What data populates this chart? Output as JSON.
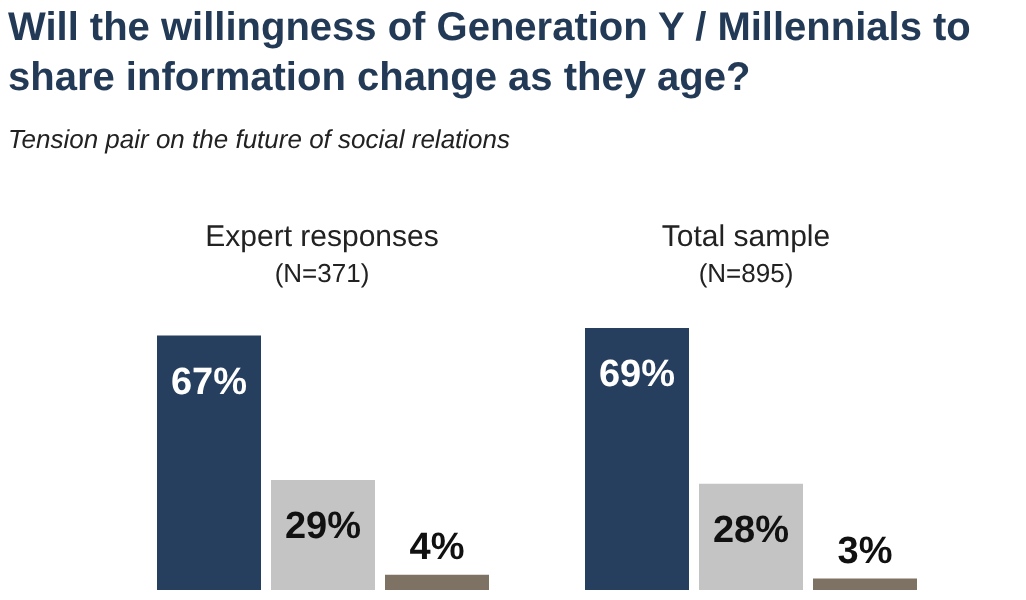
{
  "chart_data": [
    {
      "type": "bar",
      "title": "Expert responses",
      "subtitle": "(N=371)",
      "annotations": [
        "Will the willingness of Generation Y / Millennials to share information change as they age?",
        "Tension pair on the future of social relations"
      ],
      "categories": [
        null,
        null,
        null
      ],
      "values": [
        67,
        29,
        4
      ],
      "colors": [
        "#263f5e",
        "#c4c4c4",
        "#7d7263"
      ],
      "value_labels": [
        "67%",
        "29%",
        "4%"
      ]
    },
    {
      "type": "bar",
      "title": "Total sample",
      "subtitle": "(N=895)",
      "categories": [
        null,
        null,
        null
      ],
      "values": [
        69,
        28,
        3
      ],
      "colors": [
        "#263f5e",
        "#c4c4c4",
        "#7d7263"
      ],
      "value_labels": [
        "69%",
        "28%",
        "3%"
      ]
    }
  ]
}
